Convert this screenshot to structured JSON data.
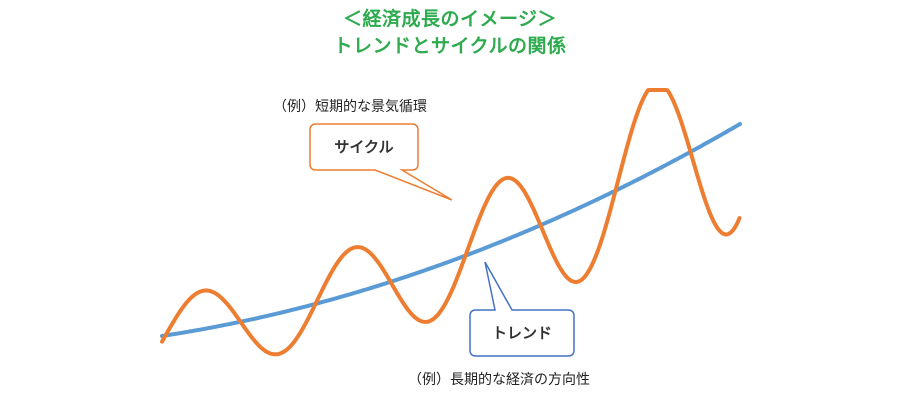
{
  "title": {
    "line1": "＜経済成長のイメージ＞",
    "line2": "トレンドとサイクルの関係"
  },
  "labels": {
    "cycle_note": "（例）短期的な景気循環",
    "cycle_label": "サイクル",
    "trend_label": "トレンド",
    "trend_note": "（例）長期的な経済の方向性"
  },
  "colors": {
    "title": "#2eaa4f",
    "cycle": "#ed7d31",
    "trend": "#5b9bd5",
    "trend_callout_border": "#4472c4"
  }
}
